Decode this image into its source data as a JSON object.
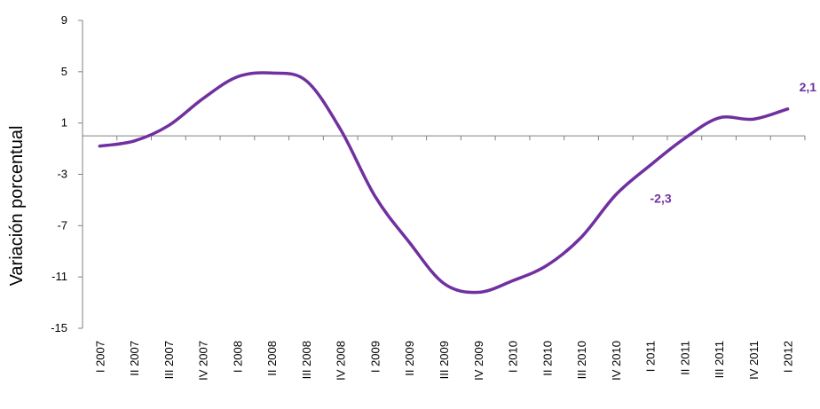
{
  "chart_data": {
    "type": "line",
    "title": "",
    "xlabel": "",
    "ylabel": "Variación porcentual",
    "ylim": [
      -15,
      9
    ],
    "yticks": [
      9,
      5,
      1,
      -3,
      -7,
      -11,
      -15
    ],
    "grid": false,
    "legend": "none",
    "line_color": "#7030A0",
    "categories": [
      "I 2007",
      "II 2007",
      "III 2007",
      "IV 2007",
      "I 2008",
      "II 2008",
      "III 2008",
      "IV 2008",
      "I 2009",
      "II 2009",
      "III 2009",
      "IV 2009",
      "I 2010",
      "II 2010",
      "III 2010",
      "IV 2010",
      "I 2011",
      "II 2011",
      "III 2011",
      "IV 2011",
      "I 2012"
    ],
    "series": [
      {
        "values": [
          -0.8,
          -0.4,
          0.8,
          2.9,
          4.6,
          4.9,
          4.3,
          0.5,
          -4.7,
          -8.3,
          -11.5,
          -12.2,
          -11.3,
          -10.1,
          -7.9,
          -4.6,
          -2.3,
          -0.2,
          1.4,
          1.3,
          2.1
        ]
      }
    ],
    "data_labels": [
      {
        "index": 16,
        "text": "-2,3"
      },
      {
        "index": 20,
        "text": "2,1"
      }
    ]
  }
}
